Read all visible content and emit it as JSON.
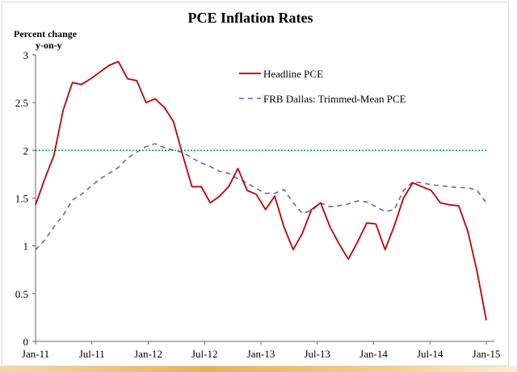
{
  "chart_data": {
    "type": "line",
    "title": "PCE Inflation Rates",
    "ylabel_line1": "Percent change",
    "ylabel_line2": "y-on-y",
    "xlabel": "",
    "ylim": [
      0,
      3
    ],
    "yticks": [
      "0",
      "0.5",
      "1",
      "1.5",
      "2",
      "2.5",
      "3"
    ],
    "ytick_values": [
      0,
      0.5,
      1,
      1.5,
      2,
      2.5,
      3
    ],
    "x_tick_labels": [
      "Jan-11",
      "Jul-11",
      "Jan-12",
      "Jul-12",
      "Jan-13",
      "Jul-13",
      "Jan-14",
      "Jul-14",
      "Jan-15"
    ],
    "x_tick_months": [
      0,
      6,
      12,
      18,
      24,
      30,
      36,
      42,
      48
    ],
    "x_range_months": [
      0,
      48
    ],
    "reference_line": {
      "value": 2,
      "color": "#00a651",
      "style": "dotted"
    },
    "series": [
      {
        "name": "Headline PCE",
        "color": "#c00000",
        "style": "solid",
        "values": [
          1.43,
          1.7,
          1.95,
          2.42,
          2.71,
          2.69,
          2.75,
          2.82,
          2.89,
          2.93,
          2.75,
          2.73,
          2.5,
          2.54,
          2.45,
          2.3,
          1.95,
          1.62,
          1.62,
          1.45,
          1.52,
          1.62,
          1.81,
          1.58,
          1.54,
          1.38,
          1.52,
          1.2,
          0.96,
          1.13,
          1.38,
          1.45,
          1.2,
          1.02,
          0.86,
          1.04,
          1.24,
          1.23,
          0.96,
          1.21,
          1.5,
          1.66,
          1.62,
          1.58,
          1.45,
          1.43,
          1.42,
          1.15,
          0.73,
          0.22
        ]
      },
      {
        "name": "FRB Dallas: Trimmed-Mean PCE",
        "color": "#7b5bb5",
        "style": "dashed",
        "values": [
          0.96,
          1.06,
          1.2,
          1.32,
          1.48,
          1.54,
          1.62,
          1.7,
          1.76,
          1.82,
          1.92,
          1.98,
          2.04,
          2.07,
          2.03,
          2.0,
          1.98,
          1.92,
          1.87,
          1.83,
          1.78,
          1.76,
          1.7,
          1.66,
          1.6,
          1.55,
          1.55,
          1.59,
          1.45,
          1.34,
          1.37,
          1.45,
          1.41,
          1.42,
          1.44,
          1.47,
          1.46,
          1.41,
          1.36,
          1.38,
          1.58,
          1.67,
          1.66,
          1.64,
          1.63,
          1.62,
          1.61,
          1.61,
          1.58,
          1.45
        ]
      }
    ],
    "legend_position": "top-right"
  }
}
